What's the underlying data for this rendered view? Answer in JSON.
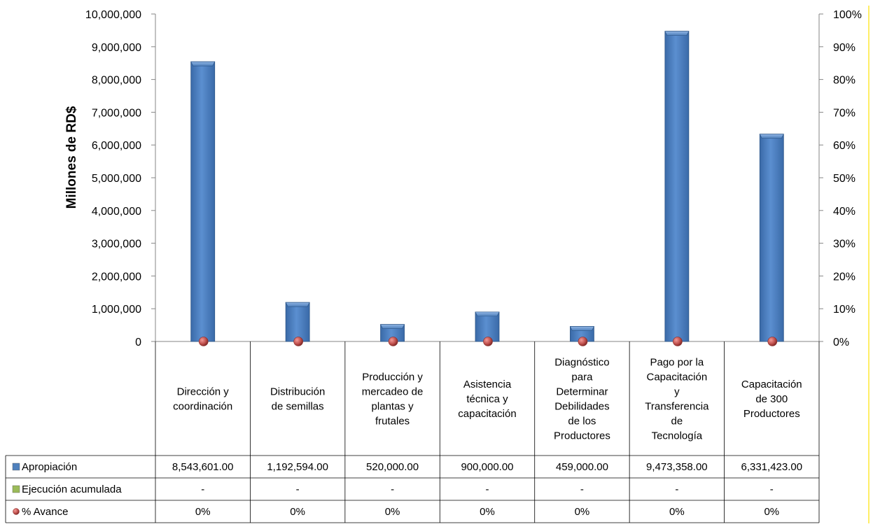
{
  "chart_data": {
    "type": "bar",
    "ylabel": "Millones de RD$",
    "ylim": [
      0,
      10000000
    ],
    "y_ticks": [
      "0",
      "1,000,000",
      "2,000,000",
      "3,000,000",
      "4,000,000",
      "5,000,000",
      "6,000,000",
      "7,000,000",
      "8,000,000",
      "9,000,000",
      "10,000,000"
    ],
    "y2lim": [
      0,
      1
    ],
    "y2_ticks": [
      "0%",
      "10%",
      "20%",
      "30%",
      "40%",
      "50%",
      "60%",
      "70%",
      "80%",
      "90%",
      "100%"
    ],
    "categories": [
      "Dirección y coordinación",
      "Distribución de semillas",
      "Producción y mercadeo de plantas y frutales",
      "Asistencia técnica y capacitación",
      "Diagnóstico para Determinar Debilidades de los Productores",
      "Pago por la Capacitación y Transferencia de Tecnología",
      "Capacitación de 300 Productores"
    ],
    "category_lines": [
      [
        "Dirección y",
        "coordinación"
      ],
      [
        "Distribución",
        "de semillas"
      ],
      [
        "Producción y",
        "mercadeo de",
        "plantas y",
        "frutales"
      ],
      [
        "Asistencia",
        "técnica y",
        "capacitación"
      ],
      [
        "Diagnóstico",
        "para",
        "Determinar",
        "Debilidades",
        "de los",
        "Productores"
      ],
      [
        "Pago por la",
        "Capacitación",
        "y",
        "Transferencia",
        "de",
        "Tecnología"
      ],
      [
        "Capacitación",
        "de 300",
        "Productores"
      ]
    ],
    "series": [
      {
        "name": "Apropiación",
        "color": "#4f81bd",
        "values": [
          8543601.0,
          1192594.0,
          520000.0,
          900000.0,
          459000.0,
          9473358.0,
          6331423.0
        ],
        "labels": [
          "8,543,601.00",
          "1,192,594.00",
          "520,000.00",
          "900,000.00",
          "459,000.00",
          "9,473,358.00",
          "6,331,423.00"
        ]
      },
      {
        "name": "Ejecución acumulada",
        "color": "#9bbb59",
        "values": [
          0,
          0,
          0,
          0,
          0,
          0,
          0
        ],
        "labels": [
          "-",
          "-",
          "-",
          "-",
          "-",
          "-",
          "-"
        ]
      },
      {
        "name": "% Avance",
        "color": "#c0504d",
        "axis": "secondary",
        "values": [
          0,
          0,
          0,
          0,
          0,
          0,
          0
        ],
        "labels": [
          "0%",
          "0%",
          "0%",
          "0%",
          "0%",
          "0%",
          "0%"
        ]
      }
    ],
    "grid": false,
    "legend": "data-table"
  }
}
